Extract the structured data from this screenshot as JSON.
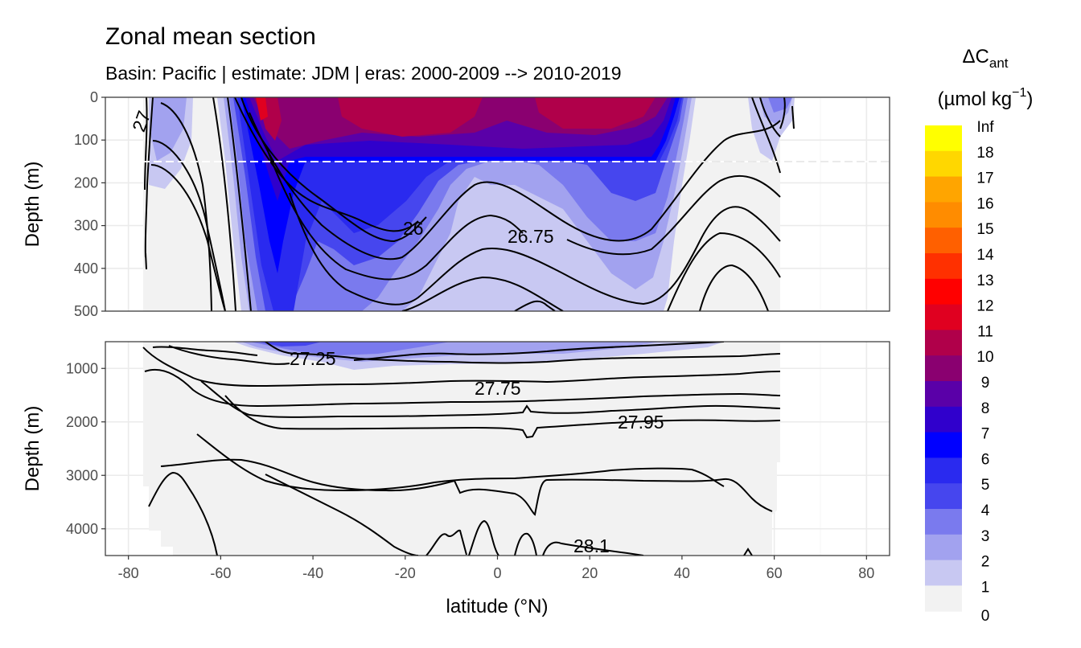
{
  "header": {
    "title": "Zonal mean section",
    "subtitle": "Basin: Pacific | estimate: JDM  | eras: 2000-2009 --> 2010-2019"
  },
  "chart_data": {
    "type": "heatmap",
    "title": "Zonal mean section",
    "subtitle": "Basin: Pacific | estimate: JDM  | eras: 2000-2009 --> 2010-2019",
    "xlabel": "latitude (°N)",
    "ylabel": "Depth (m)",
    "xlim": [
      -85,
      85
    ],
    "x_ticks": [
      "-80",
      "-60",
      "-40",
      "-20",
      "0",
      "20",
      "40",
      "60",
      "80"
    ],
    "panels": [
      {
        "name": "upper",
        "ylim": [
          0,
          500
        ],
        "y_ticks": [
          "0",
          "100",
          "200",
          "300",
          "400",
          "500"
        ]
      },
      {
        "name": "lower",
        "ylim": [
          500,
          4500
        ],
        "y_ticks": [
          "1000",
          "2000",
          "3000",
          "4000"
        ]
      }
    ],
    "reference_depth_m": 150,
    "contour_labels": [
      "27",
      "26",
      "26.75",
      "27.25",
      "27.75",
      "27.95",
      "28.1"
    ],
    "legend": {
      "title": "ΔC",
      "title_subscript": "ant",
      "unit": "(µmol kg",
      "unit_exponent": "−1",
      "unit_close": ")",
      "breaks": [
        "Inf",
        "18",
        "17",
        "16",
        "15",
        "14",
        "13",
        "12",
        "11",
        "10",
        "9",
        "8",
        "7",
        "6",
        "5",
        "4",
        "3",
        "2",
        "1",
        "0"
      ],
      "colors": [
        "#ffff00",
        "#ffd700",
        "#ffa500",
        "#ff8c00",
        "#ff6000",
        "#ff3000",
        "#ff0000",
        "#e00020",
        "#b0004a",
        "#8a0070",
        "#5a00a8",
        "#3000cc",
        "#0000ff",
        "#2a2aef",
        "#4646ee",
        "#7a7aee",
        "#a2a2ef",
        "#c8c8f2",
        "#f2f2f2"
      ]
    }
  }
}
